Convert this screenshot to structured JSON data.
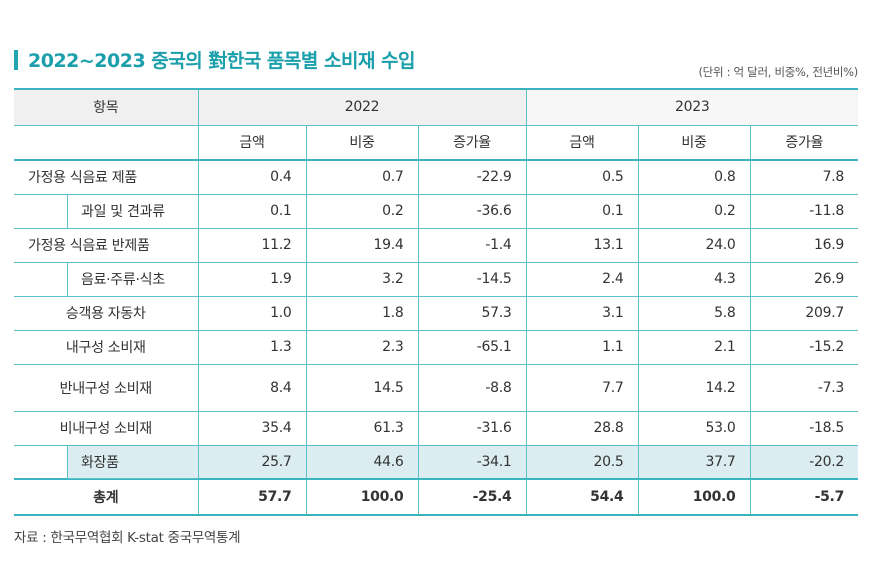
{
  "title": "2022~2023 중국의 對한국 품목별 소비재 수입",
  "unit": "(단위 : 억 달러, 비중%, 전년비%)",
  "header": {
    "item": "항목",
    "years": [
      "2022",
      "2023"
    ],
    "sub": [
      "금액",
      "비중",
      "증가율",
      "금액",
      "비중",
      "증가율"
    ]
  },
  "rows": [
    {
      "label": "가정용 식음료 제품",
      "values": [
        "0.4",
        "0.7",
        "-22.9",
        "0.5",
        "0.8",
        "7.8"
      ]
    },
    {
      "label": "과일 및 견과류",
      "sub_item": true,
      "values": [
        "0.1",
        "0.2",
        "-36.6",
        "0.1",
        "0.2",
        "-11.8"
      ]
    },
    {
      "label": "가정용 식음료 반제품",
      "values": [
        "11.2",
        "19.4",
        "-1.4",
        "13.1",
        "24.0",
        "16.9"
      ]
    },
    {
      "label": "음료·주류·식초",
      "sub_item": true,
      "values": [
        "1.9",
        "3.2",
        "-14.5",
        "2.4",
        "4.3",
        "26.9"
      ]
    },
    {
      "label": "승객용 자동차",
      "values": [
        "1.0",
        "1.8",
        "57.3",
        "3.1",
        "5.8",
        "209.7"
      ]
    },
    {
      "label": "내구성 소비재",
      "values": [
        "1.3",
        "2.3",
        "-65.1",
        "1.1",
        "2.1",
        "-15.2"
      ]
    },
    {
      "label": "반내구성 소비재",
      "values": [
        "8.4",
        "14.5",
        "-8.8",
        "7.7",
        "14.2",
        "-7.3"
      ]
    },
    {
      "label": "비내구성 소비재",
      "values": [
        "35.4",
        "61.3",
        "-31.6",
        "28.8",
        "53.0",
        "-18.5"
      ]
    },
    {
      "label": "화장품",
      "sub_item": true,
      "highlighted": true,
      "values": [
        "25.7",
        "44.6",
        "-34.1",
        "20.5",
        "37.7",
        "-20.2"
      ]
    }
  ],
  "total": {
    "label": "총계",
    "values": [
      "57.7",
      "100.0",
      "-25.4",
      "54.4",
      "100.0",
      "-5.7"
    ]
  },
  "source": "자료 : 한국무역협회 K-stat 중국무역통계",
  "colors": {
    "accent": "#1b9fab",
    "border": "#5ec0c8",
    "highlight": "#dbedf0",
    "header_bg": "#f0f0f0"
  }
}
